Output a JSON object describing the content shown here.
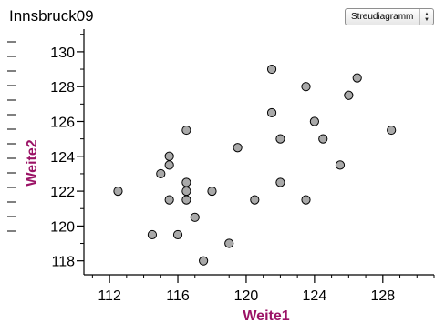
{
  "window": {
    "title": "Innsbruck09"
  },
  "plot_type_select": {
    "value": "Streudiagramm",
    "arrow_up": "▲",
    "arrow_down": "▼"
  },
  "colors": {
    "axis_title": "#9b1366",
    "point_fill": "#a9a9a9",
    "point_stroke": "#000000",
    "axis_line": "#000000"
  },
  "chart_data": {
    "type": "scatter",
    "title": "",
    "xlabel": "Weite1",
    "ylabel": "Weite2",
    "xlim": [
      110.5,
      131
    ],
    "ylim": [
      117.2,
      131.3
    ],
    "x_ticks": [
      112,
      116,
      120,
      124,
      128
    ],
    "y_ticks": [
      118,
      120,
      122,
      124,
      126,
      128,
      130
    ],
    "x_minor_step": 1,
    "y_minor_step": 1,
    "grid": false,
    "series": [
      {
        "points": [
          {
            "x": 112.5,
            "y": 122
          },
          {
            "x": 114.5,
            "y": 119.5
          },
          {
            "x": 115,
            "y": 123
          },
          {
            "x": 115.5,
            "y": 124
          },
          {
            "x": 115.5,
            "y": 123.5
          },
          {
            "x": 115.5,
            "y": 121.5
          },
          {
            "x": 116,
            "y": 119.5
          },
          {
            "x": 116.5,
            "y": 125.5
          },
          {
            "x": 116.5,
            "y": 122.5
          },
          {
            "x": 116.5,
            "y": 122
          },
          {
            "x": 116.5,
            "y": 121.5
          },
          {
            "x": 117,
            "y": 120.5
          },
          {
            "x": 117.5,
            "y": 118
          },
          {
            "x": 118,
            "y": 122
          },
          {
            "x": 119,
            "y": 119
          },
          {
            "x": 119.5,
            "y": 124.5
          },
          {
            "x": 120.5,
            "y": 121.5
          },
          {
            "x": 121.5,
            "y": 129
          },
          {
            "x": 121.5,
            "y": 126.5
          },
          {
            "x": 122,
            "y": 125
          },
          {
            "x": 122,
            "y": 122.5
          },
          {
            "x": 123.5,
            "y": 128
          },
          {
            "x": 123.5,
            "y": 121.5
          },
          {
            "x": 124,
            "y": 126
          },
          {
            "x": 124.5,
            "y": 125
          },
          {
            "x": 125.5,
            "y": 123.5
          },
          {
            "x": 126,
            "y": 127.5
          },
          {
            "x": 126.5,
            "y": 128.5
          },
          {
            "x": 128.5,
            "y": 125.5
          }
        ]
      }
    ]
  }
}
